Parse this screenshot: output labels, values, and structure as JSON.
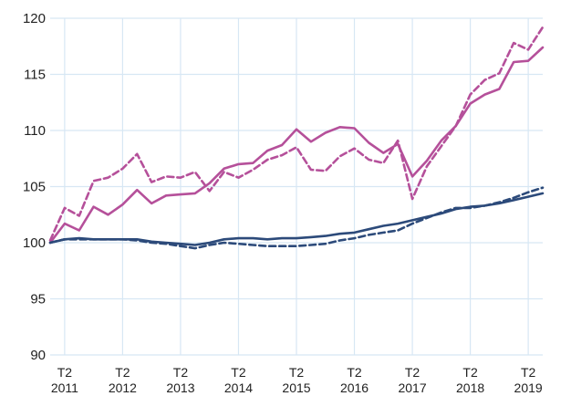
{
  "chart_data": {
    "type": "line",
    "title": "",
    "xlabel": "",
    "ylabel": "",
    "ylim": [
      90,
      120
    ],
    "xlim": [
      0,
      34
    ],
    "grid": true,
    "legend": "none",
    "yticks": [
      90,
      95,
      100,
      105,
      110,
      115,
      120
    ],
    "x_tick_positions": [
      1,
      5,
      9,
      13,
      17,
      21,
      25,
      29,
      33
    ],
    "x_tick_labels": [
      {
        "line1": "T2",
        "line2": "2011"
      },
      {
        "line1": "T2",
        "line2": "2012"
      },
      {
        "line1": "T2",
        "line2": "2013"
      },
      {
        "line1": "T2",
        "line2": "2014"
      },
      {
        "line1": "T2",
        "line2": "2015"
      },
      {
        "line1": "T2",
        "line2": "2016"
      },
      {
        "line1": "T2",
        "line2": "2017"
      },
      {
        "line1": "T2",
        "line2": "2018"
      },
      {
        "line1": "T2",
        "line2": "2019"
      }
    ],
    "series": [
      {
        "color": "#b5509a",
        "dash": "solid",
        "values": [
          100.0,
          101.7,
          101.1,
          103.2,
          102.5,
          103.4,
          104.7,
          103.5,
          104.2,
          104.3,
          104.4,
          105.3,
          106.6,
          107.0,
          107.1,
          108.2,
          108.7,
          110.1,
          109.0,
          109.8,
          110.3,
          110.2,
          108.9,
          108.0,
          108.8,
          105.9,
          107.3,
          109.1,
          110.4,
          112.4,
          113.2,
          113.7,
          116.1,
          116.2,
          117.4
        ]
      },
      {
        "color": "#b5509a",
        "dash": "dashed",
        "values": [
          100.2,
          103.1,
          102.4,
          105.5,
          105.8,
          106.6,
          107.9,
          105.4,
          105.9,
          105.8,
          106.3,
          104.6,
          106.3,
          105.8,
          106.5,
          107.4,
          107.8,
          108.5,
          106.5,
          106.4,
          107.7,
          108.4,
          107.4,
          107.1,
          109.1,
          103.9,
          106.8,
          108.6,
          110.4,
          113.2,
          114.5,
          115.1,
          117.8,
          117.2,
          119.2
        ]
      },
      {
        "color": "#2c4a7a",
        "dash": "solid",
        "values": [
          100.0,
          100.3,
          100.4,
          100.3,
          100.3,
          100.3,
          100.3,
          100.1,
          100.0,
          99.9,
          99.8,
          100.0,
          100.3,
          100.4,
          100.4,
          100.3,
          100.4,
          100.4,
          100.5,
          100.6,
          100.8,
          100.9,
          101.2,
          101.5,
          101.7,
          102.0,
          102.3,
          102.6,
          103.0,
          103.2,
          103.3,
          103.5,
          103.8,
          104.1,
          104.4
        ]
      },
      {
        "color": "#2c4a7a",
        "dash": "dashed",
        "values": [
          100.0,
          100.3,
          100.3,
          100.3,
          100.3,
          100.3,
          100.2,
          100.0,
          99.9,
          99.7,
          99.5,
          99.8,
          100.0,
          99.9,
          99.8,
          99.7,
          99.7,
          99.7,
          99.8,
          99.9,
          100.2,
          100.4,
          100.7,
          100.9,
          101.1,
          101.7,
          102.2,
          102.7,
          103.1,
          103.1,
          103.3,
          103.6,
          104.0,
          104.5,
          104.9
        ]
      }
    ]
  }
}
